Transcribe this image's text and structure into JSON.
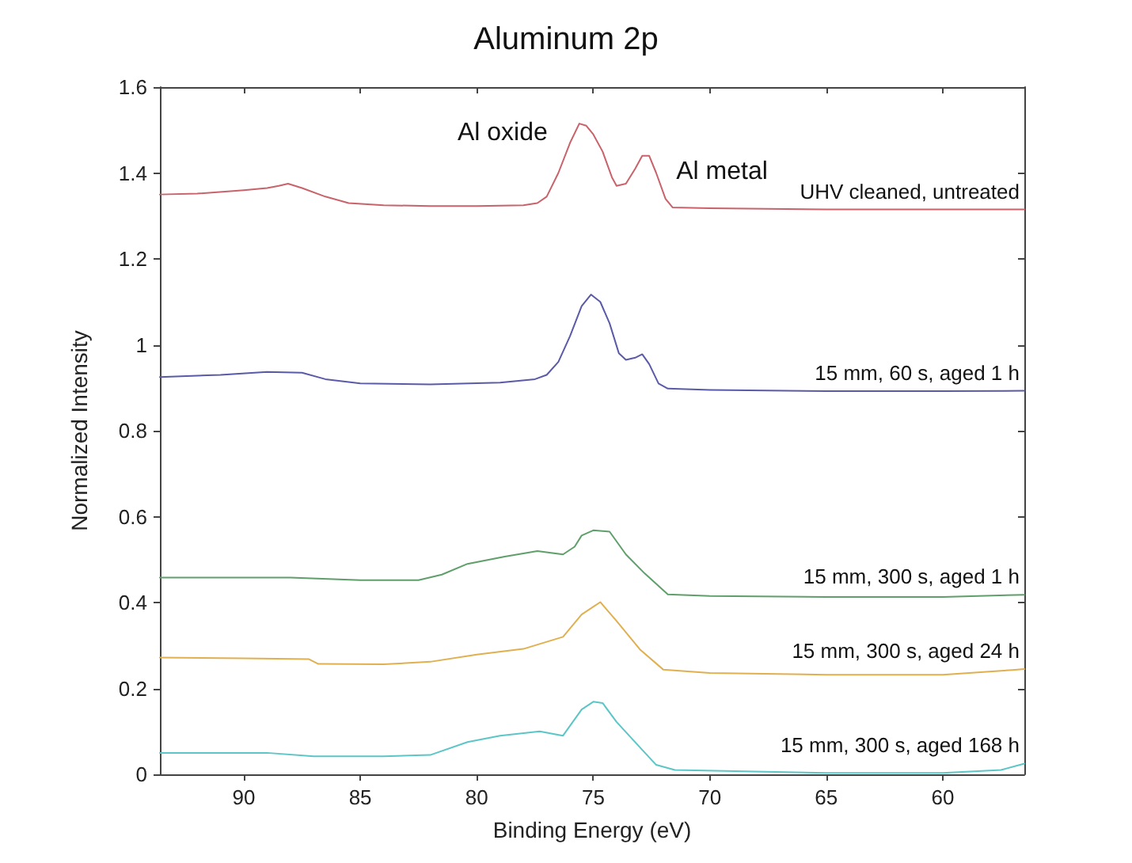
{
  "chart_data": {
    "type": "line",
    "title": "Aluminum 2p",
    "xlabel": "Binding Energy (eV)",
    "ylabel": "Normalized Intensity",
    "xlim": [
      93.6,
      56.5
    ],
    "xticks": [
      90,
      85,
      80,
      75,
      70,
      65,
      60
    ],
    "ylim": [
      0,
      1.6
    ],
    "yticks": [
      0,
      0.2,
      0.4,
      0.6,
      0.8,
      1,
      1.2,
      1.4,
      1.6
    ],
    "grid": false,
    "legend": false,
    "marker": "none",
    "line_style": "solid",
    "annotations": [
      {
        "text": "Al oxide",
        "x": 75.6,
        "y": 1.515
      },
      {
        "text": "Al metal",
        "x": 72.8,
        "y": 1.44
      }
    ],
    "series": [
      {
        "name": "UHV cleaned, untreated",
        "color": "#c8636b",
        "x": [
          93.6,
          92,
          90,
          89,
          88.5,
          88.1,
          87.5,
          86.5,
          85.5,
          84,
          82,
          80,
          78,
          77.4,
          77,
          76.5,
          76,
          75.6,
          75.3,
          75,
          74.6,
          74.2,
          74,
          73.6,
          73.2,
          72.9,
          72.6,
          72.3,
          71.9,
          71.6,
          70,
          65,
          60,
          56.5
        ],
        "values": [
          1.35,
          1.352,
          1.36,
          1.365,
          1.37,
          1.375,
          1.365,
          1.345,
          1.33,
          1.325,
          1.323,
          1.323,
          1.325,
          1.33,
          1.345,
          1.4,
          1.47,
          1.515,
          1.51,
          1.49,
          1.45,
          1.39,
          1.37,
          1.375,
          1.41,
          1.44,
          1.44,
          1.4,
          1.34,
          1.32,
          1.318,
          1.315,
          1.315,
          1.315
        ]
      },
      {
        "name": "15 mm, 60 s, aged 1 h",
        "color": "#5a5aa8",
        "x": [
          93.6,
          91,
          89,
          87.5,
          86.5,
          85,
          82,
          79,
          77.5,
          77,
          76.5,
          76,
          75.5,
          75.1,
          74.7,
          74.3,
          73.9,
          73.6,
          73.2,
          72.9,
          72.6,
          72.2,
          71.8,
          70,
          65,
          60,
          56.5
        ],
        "values": [
          0.925,
          0.93,
          0.937,
          0.935,
          0.92,
          0.91,
          0.908,
          0.912,
          0.92,
          0.93,
          0.96,
          1.02,
          1.09,
          1.117,
          1.1,
          1.05,
          0.98,
          0.965,
          0.97,
          0.978,
          0.955,
          0.91,
          0.898,
          0.895,
          0.892,
          0.892,
          0.893
        ]
      },
      {
        "name": "15 mm, 300 s, aged 1 h",
        "color": "#5f9f6a",
        "x": [
          93.6,
          91,
          88,
          85,
          82.5,
          81.5,
          80.4,
          78.8,
          77.4,
          76.3,
          75.8,
          75.5,
          75,
          74.3,
          73.6,
          72.8,
          71.8,
          70,
          65,
          60,
          56.5
        ],
        "values": [
          0.458,
          0.458,
          0.458,
          0.452,
          0.452,
          0.465,
          0.49,
          0.507,
          0.52,
          0.512,
          0.53,
          0.556,
          0.568,
          0.565,
          0.512,
          0.468,
          0.419,
          0.415,
          0.413,
          0.413,
          0.418
        ]
      },
      {
        "name": "15 mm, 300 s, aged 24 h",
        "color": "#e0b050",
        "x": [
          93.6,
          90,
          87.2,
          86.8,
          84,
          82,
          80,
          78,
          76.3,
          75.5,
          74.7,
          74,
          73,
          72,
          70,
          65,
          60,
          57,
          56.5
        ],
        "values": [
          0.272,
          0.27,
          0.268,
          0.257,
          0.256,
          0.262,
          0.279,
          0.292,
          0.32,
          0.372,
          0.401,
          0.357,
          0.291,
          0.244,
          0.236,
          0.232,
          0.232,
          0.243,
          0.245
        ]
      },
      {
        "name": "15 mm, 300 s, aged 168 h",
        "color": "#5cc6c6",
        "x": [
          93.6,
          89,
          87,
          84,
          82,
          80.4,
          79,
          77.3,
          76.3,
          75.5,
          75,
          74.6,
          74,
          73,
          72.3,
          71.5,
          65,
          60,
          57.5,
          56.5
        ],
        "values": [
          0.05,
          0.05,
          0.042,
          0.042,
          0.045,
          0.075,
          0.09,
          0.1,
          0.09,
          0.151,
          0.169,
          0.166,
          0.122,
          0.063,
          0.022,
          0.01,
          0.003,
          0.003,
          0.01,
          0.025
        ]
      }
    ]
  }
}
